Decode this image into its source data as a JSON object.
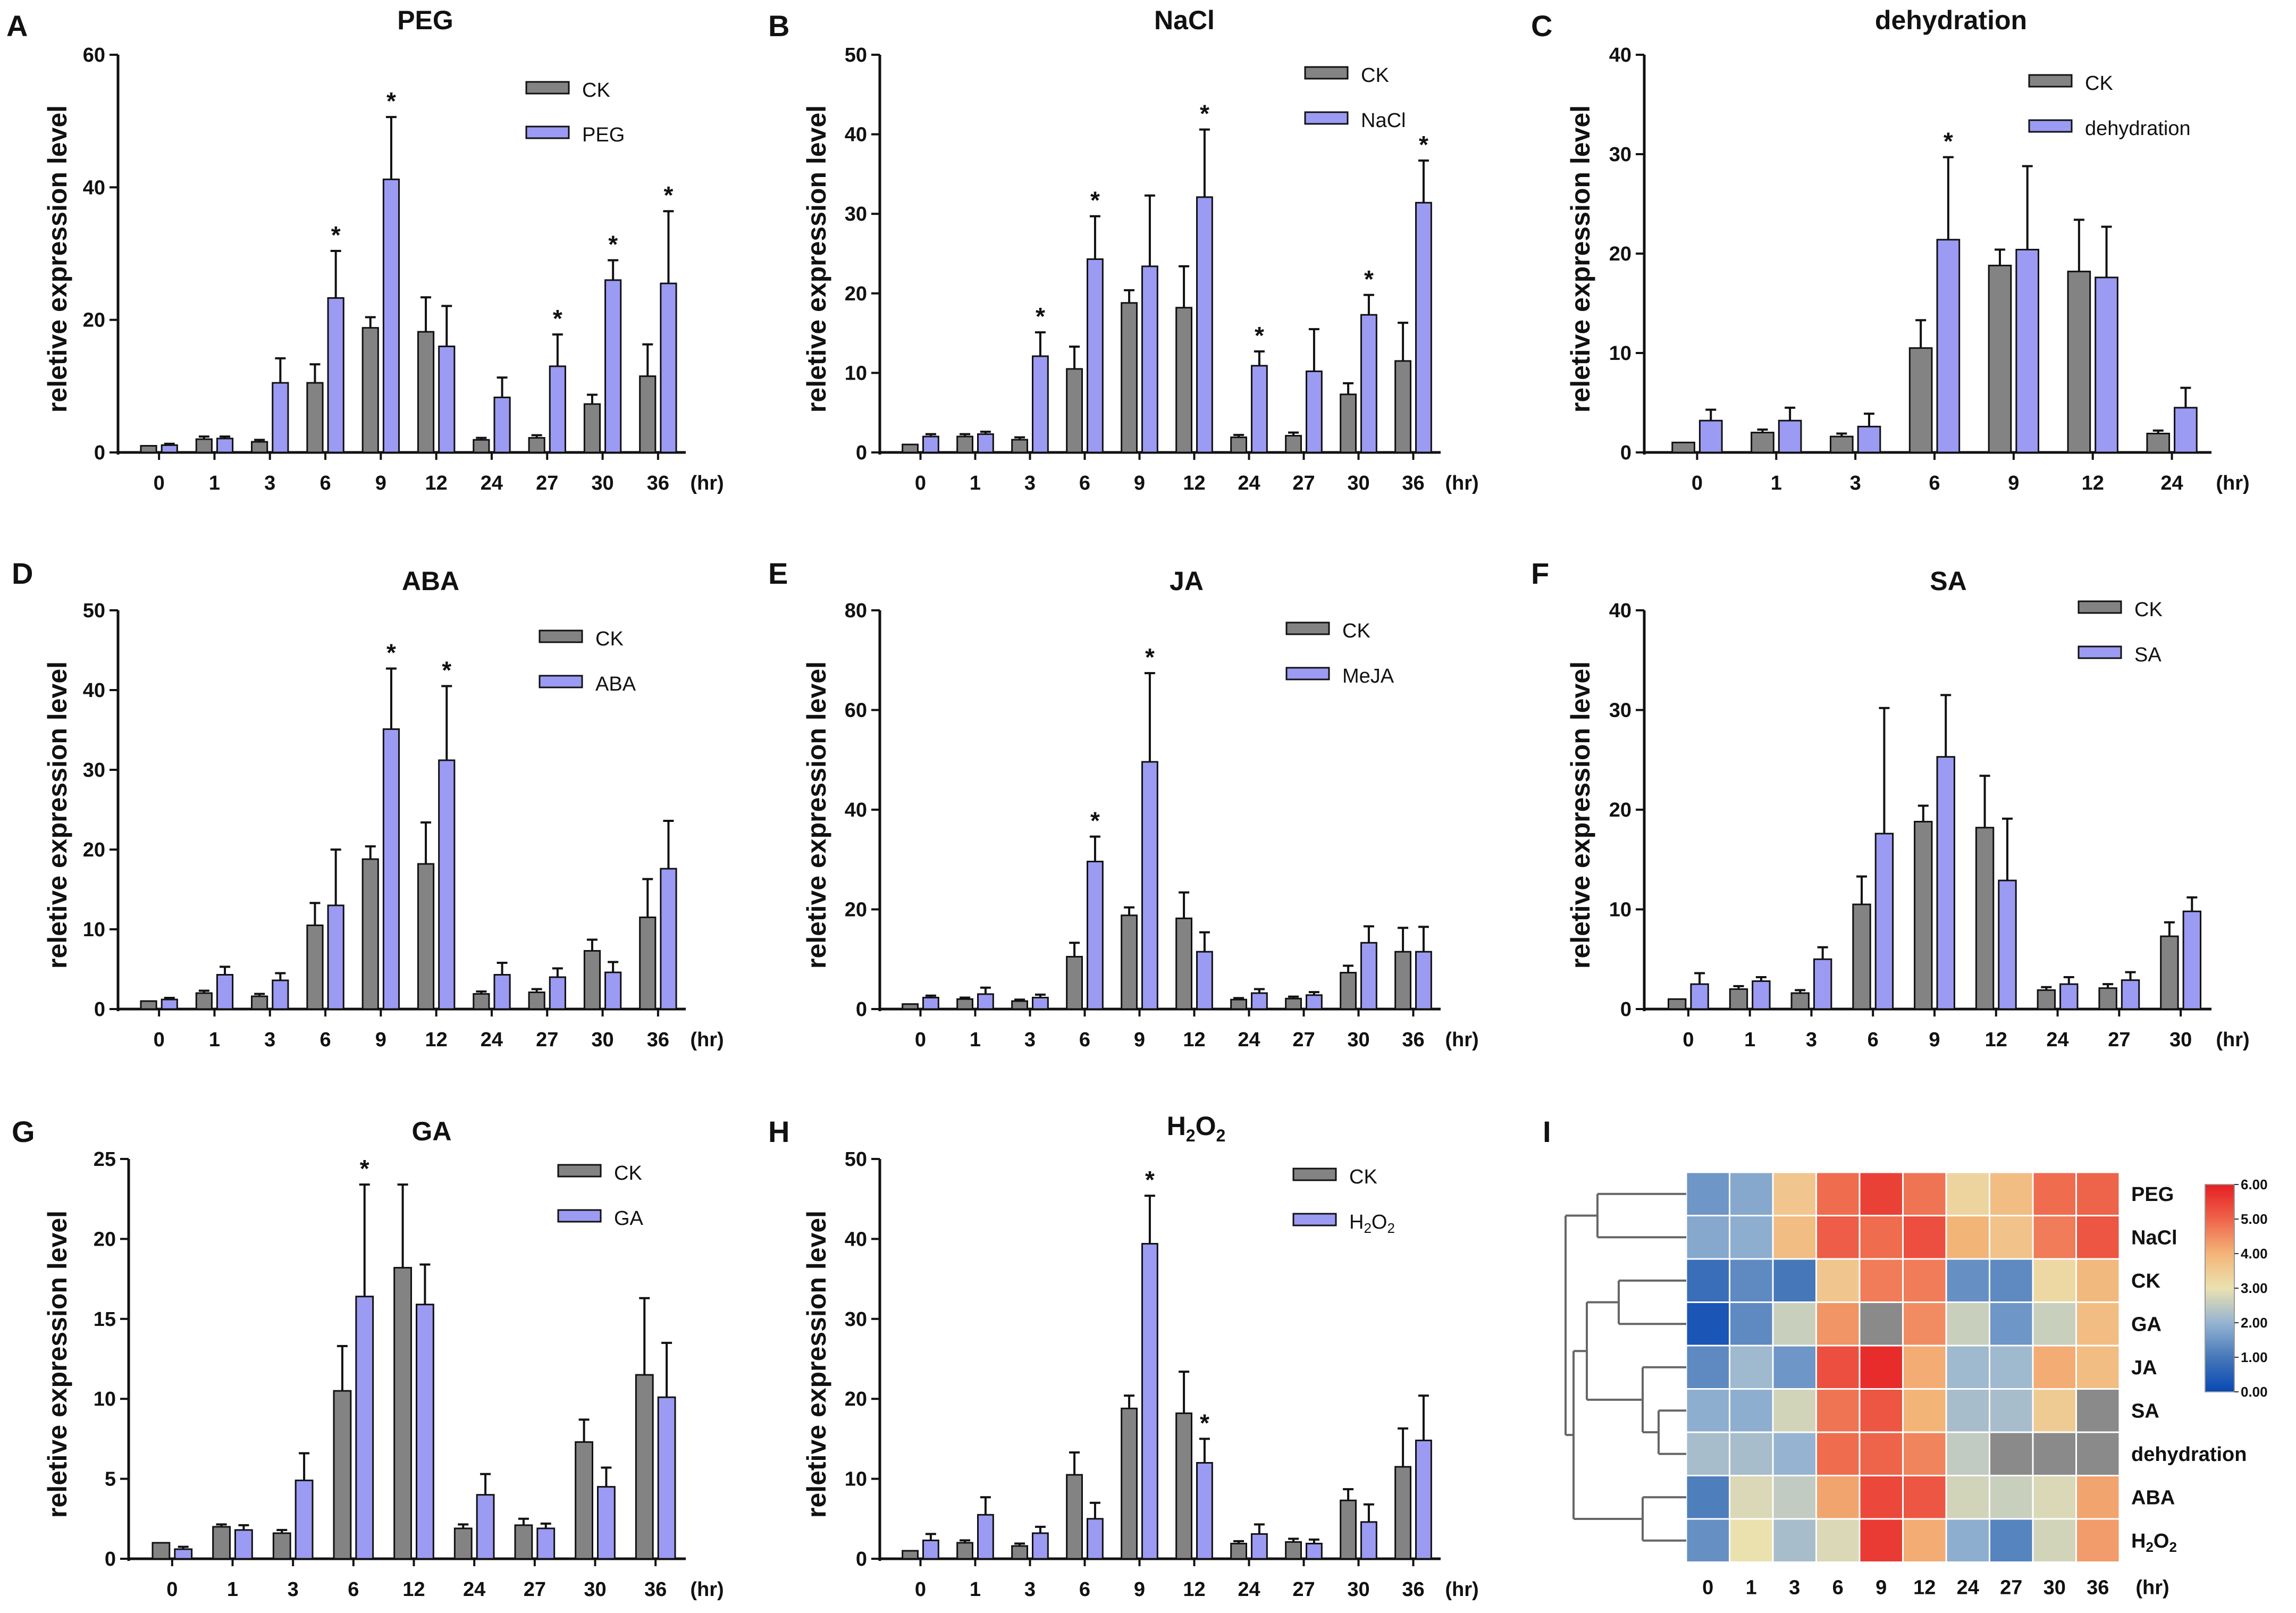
{
  "colors": {
    "ck": "#838383",
    "treat": "#9b9bf3",
    "axis": "#111111",
    "tree": "#666666"
  },
  "chart_data": [
    {
      "type": "bar",
      "panel": "A",
      "title": "PEG",
      "categories": [
        "0",
        "1",
        "3",
        "6",
        "9",
        "12",
        "24",
        "27",
        "30",
        "36"
      ],
      "unit": "(hr)",
      "ylabel": "reletive expression level",
      "ylim": [
        0,
        60
      ],
      "yticks": [
        0,
        20,
        40,
        60
      ],
      "series": [
        {
          "name": "CK",
          "values": [
            1,
            2,
            1.6,
            10.5,
            18.8,
            18.2,
            1.9,
            2.2,
            7.3,
            11.5
          ],
          "errors": [
            0,
            0.4,
            0.3,
            2.8,
            1.6,
            5.2,
            0.3,
            0.4,
            1.4,
            4.8
          ]
        },
        {
          "name": "PEG",
          "values": [
            1.1,
            2.1,
            10.5,
            23.3,
            41.2,
            16,
            8.3,
            13,
            26,
            25.5
          ],
          "errors": [
            0.2,
            0.3,
            3.7,
            7.1,
            9.4,
            6.1,
            3,
            4.8,
            3,
            10.9
          ]
        }
      ],
      "stars": [
        "",
        "",
        "",
        "*",
        "*",
        "",
        "",
        "*",
        "*",
        "*"
      ]
    },
    {
      "type": "bar",
      "panel": "B",
      "title": "NaCl",
      "categories": [
        "0",
        "1",
        "3",
        "6",
        "9",
        "12",
        "24",
        "27",
        "30",
        "36"
      ],
      "unit": "(hr)",
      "ylabel": "reletive expression level",
      "ylim": [
        0,
        50
      ],
      "yticks": [
        0,
        10,
        20,
        30,
        40,
        50
      ],
      "series": [
        {
          "name": "CK",
          "values": [
            1,
            2,
            1.6,
            10.5,
            18.8,
            18.2,
            1.9,
            2.1,
            7.3,
            11.5
          ],
          "errors": [
            0,
            0.3,
            0.3,
            2.8,
            1.6,
            5.2,
            0.3,
            0.4,
            1.4,
            4.8
          ]
        },
        {
          "name": "NaCl",
          "values": [
            2,
            2.3,
            12.1,
            24.3,
            23.4,
            32.1,
            10.9,
            10.2,
            17.3,
            31.4
          ],
          "errors": [
            0.3,
            0.3,
            3,
            5.4,
            8.9,
            8.5,
            1.8,
            5.3,
            2.5,
            5.3
          ]
        }
      ],
      "stars": [
        "",
        "",
        "*",
        "*",
        "",
        "*",
        "*",
        "",
        "*",
        "*"
      ]
    },
    {
      "type": "bar",
      "panel": "C",
      "title": "dehydration",
      "categories": [
        "0",
        "1",
        "3",
        "6",
        "9",
        "12",
        "24"
      ],
      "unit": "(hr)",
      "ylabel": "reletive expression level",
      "ylim": [
        0,
        40
      ],
      "yticks": [
        0,
        10,
        20,
        30,
        40
      ],
      "series": [
        {
          "name": "CK",
          "values": [
            1,
            2,
            1.6,
            10.5,
            18.8,
            18.2,
            1.9
          ],
          "errors": [
            0,
            0.3,
            0.3,
            2.8,
            1.6,
            5.2,
            0.3
          ]
        },
        {
          "name": "dehydration",
          "values": [
            3.2,
            3.2,
            2.6,
            21.4,
            20.4,
            17.6,
            4.5
          ],
          "errors": [
            1.1,
            1.3,
            1.3,
            8.3,
            8.4,
            5.1,
            2
          ]
        }
      ],
      "stars": [
        "",
        "",
        "",
        "*",
        "",
        "",
        ""
      ]
    },
    {
      "type": "bar",
      "panel": "D",
      "title": "ABA",
      "categories": [
        "0",
        "1",
        "3",
        "6",
        "9",
        "12",
        "24",
        "27",
        "30",
        "36"
      ],
      "unit": "(hr)",
      "ylabel": "reletive expression level",
      "ylim": [
        0,
        50
      ],
      "yticks": [
        0,
        10,
        20,
        30,
        40,
        50
      ],
      "series": [
        {
          "name": "CK",
          "values": [
            1,
            2,
            1.6,
            10.5,
            18.8,
            18.2,
            1.9,
            2.1,
            7.3,
            11.5
          ],
          "errors": [
            0,
            0.3,
            0.3,
            2.8,
            1.6,
            5.2,
            0.3,
            0.4,
            1.4,
            4.8
          ]
        },
        {
          "name": "ABA",
          "values": [
            1.2,
            4.3,
            3.6,
            13,
            35.1,
            31.2,
            4.3,
            4,
            4.6,
            17.6
          ],
          "errors": [
            0.2,
            1,
            0.9,
            7,
            7.6,
            9.3,
            1.5,
            1.1,
            1.3,
            6
          ]
        }
      ],
      "stars": [
        "",
        "",
        "",
        "",
        "*",
        "*",
        "",
        "",
        "",
        ""
      ]
    },
    {
      "type": "bar",
      "panel": "E",
      "title": "JA",
      "categories": [
        "0",
        "1",
        "3",
        "6",
        "9",
        "12",
        "24",
        "27",
        "30",
        "36"
      ],
      "unit": "(hr)",
      "ylabel": "reletive expression level",
      "ylim": [
        0,
        80
      ],
      "yticks": [
        0,
        20,
        40,
        60,
        80
      ],
      "series": [
        {
          "name": "CK",
          "values": [
            1,
            2,
            1.6,
            10.5,
            18.8,
            18.2,
            1.9,
            2.1,
            7.3,
            11.5
          ],
          "errors": [
            0,
            0.3,
            0.3,
            2.8,
            1.6,
            5.2,
            0.3,
            0.4,
            1.4,
            4.8
          ]
        },
        {
          "name": "MeJA",
          "values": [
            2.3,
            3,
            2.3,
            29.6,
            49.6,
            11.5,
            3.2,
            2.8,
            13.3,
            11.5
          ],
          "errors": [
            0.4,
            1.3,
            0.6,
            5,
            17.8,
            3.9,
            0.8,
            0.6,
            3.3,
            5
          ]
        }
      ],
      "stars": [
        "",
        "",
        "",
        "*",
        "*",
        "",
        "",
        "",
        "",
        ""
      ]
    },
    {
      "type": "bar",
      "panel": "F",
      "title": "SA",
      "categories": [
        "0",
        "1",
        "3",
        "6",
        "9",
        "12",
        "24",
        "27",
        "30"
      ],
      "unit": "(hr)",
      "ylabel": "reletive expression level",
      "ylim": [
        0,
        40
      ],
      "yticks": [
        0,
        10,
        20,
        30,
        40
      ],
      "series": [
        {
          "name": "CK",
          "values": [
            1,
            2,
            1.6,
            10.5,
            18.8,
            18.2,
            1.9,
            2.1,
            7.3
          ],
          "errors": [
            0,
            0.3,
            0.3,
            2.8,
            1.6,
            5.2,
            0.3,
            0.4,
            1.4
          ]
        },
        {
          "name": "SA",
          "values": [
            2.5,
            2.8,
            5,
            17.6,
            25.3,
            12.9,
            2.5,
            2.9,
            9.8
          ],
          "errors": [
            1.1,
            0.4,
            1.2,
            12.6,
            6.2,
            6.2,
            0.7,
            0.8,
            1.4
          ]
        }
      ],
      "stars": [
        "",
        "",
        "",
        "",
        "",
        "",
        "",
        "",
        ""
      ]
    },
    {
      "type": "bar",
      "panel": "G",
      "title": "GA",
      "categories": [
        "0",
        "1",
        "3",
        "6",
        "12",
        "24",
        "27",
        "30",
        "36"
      ],
      "unit": "(hr)",
      "ylabel": "reletive expression level",
      "ylim": [
        0,
        25
      ],
      "yticks": [
        0,
        5,
        10,
        15,
        20,
        25
      ],
      "series": [
        {
          "name": "CK",
          "values": [
            1,
            2,
            1.6,
            10.5,
            18.2,
            1.9,
            2.1,
            7.3,
            11.5
          ],
          "errors": [
            0,
            0.15,
            0.2,
            2.8,
            5.2,
            0.25,
            0.4,
            1.4,
            4.8
          ]
        },
        {
          "name": "GA",
          "values": [
            0.6,
            1.8,
            4.9,
            16.4,
            15.9,
            4,
            1.9,
            4.5,
            10.1
          ],
          "errors": [
            0.15,
            0.3,
            1.7,
            7,
            2.5,
            1.3,
            0.3,
            1.2,
            3.4
          ]
        }
      ],
      "stars": [
        "",
        "",
        "",
        "*",
        "",
        "",
        "",
        "",
        ""
      ]
    },
    {
      "type": "bar",
      "panel": "H",
      "title": "H2O2",
      "title_main": "H",
      "title_sub1": "2",
      "title_mid": "O",
      "title_sub2": "2",
      "categories": [
        "0",
        "1",
        "3",
        "6",
        "9",
        "12",
        "24",
        "27",
        "30",
        "36"
      ],
      "unit": "(hr)",
      "ylabel": "reletive expression level",
      "ylim": [
        0,
        50
      ],
      "yticks": [
        0,
        10,
        20,
        30,
        40,
        50
      ],
      "series": [
        {
          "name": "CK",
          "values": [
            1,
            2,
            1.6,
            10.5,
            18.8,
            18.2,
            1.9,
            2.1,
            7.3,
            11.5
          ],
          "errors": [
            0,
            0.3,
            0.3,
            2.8,
            1.6,
            5.2,
            0.3,
            0.4,
            1.4,
            4.8
          ]
        },
        {
          "name": "H2O2",
          "values": [
            2.3,
            5.5,
            3.2,
            5,
            39.4,
            12,
            3.1,
            1.9,
            4.6,
            14.8
          ],
          "errors": [
            0.8,
            2.2,
            0.8,
            2,
            6,
            3,
            1.2,
            0.5,
            2.2,
            5.6
          ]
        }
      ],
      "stars": [
        "",
        "",
        "",
        "",
        "*",
        "*",
        "",
        "",
        "",
        ""
      ]
    },
    {
      "type": "heatmap",
      "panel": "I",
      "columns": [
        "0",
        "1",
        "3",
        "6",
        "9",
        "12",
        "24",
        "27",
        "30",
        "36"
      ],
      "unit": "(hr)",
      "rows": [
        "PEG",
        "NaCl",
        "CK",
        "GA",
        "JA",
        "SA",
        "dehydration",
        "ABA",
        "H2O2"
      ],
      "values": [
        [
          1.5,
          1.8,
          3.6,
          4.9,
          5.5,
          4.8,
          3.3,
          3.8,
          4.9,
          5.0
        ],
        [
          1.8,
          1.9,
          3.8,
          5.1,
          4.9,
          5.3,
          4.0,
          3.7,
          4.7,
          5.2
        ],
        [
          0.8,
          1.3,
          1.0,
          3.6,
          4.7,
          4.7,
          1.4,
          1.3,
          3.2,
          3.9
        ],
        [
          0.3,
          1.3,
          2.6,
          4.4,
          null,
          4.5,
          2.6,
          1.5,
          2.6,
          3.8
        ],
        [
          1.3,
          2.1,
          1.5,
          5.3,
          5.8,
          4.1,
          2.1,
          2.1,
          4.1,
          3.8
        ],
        [
          1.9,
          1.9,
          2.7,
          4.8,
          5.2,
          4.0,
          2.2,
          2.2,
          3.5,
          null
        ],
        [
          2.2,
          2.2,
          2.0,
          4.9,
          5.0,
          4.6,
          2.5,
          null,
          null,
          null
        ],
        [
          1.1,
          2.8,
          2.5,
          4.2,
          5.4,
          5.2,
          2.7,
          2.6,
          2.8,
          4.2
        ],
        [
          1.4,
          3.0,
          2.2,
          2.8,
          5.6,
          4.1,
          1.9,
          1.2,
          2.7,
          4.3
        ]
      ],
      "colorbar": {
        "ticks": [
          "0.00",
          "1.00",
          "2.00",
          "3.00",
          "4.00",
          "5.00",
          "6.00"
        ],
        "min": 0,
        "max": 6
      }
    }
  ]
}
